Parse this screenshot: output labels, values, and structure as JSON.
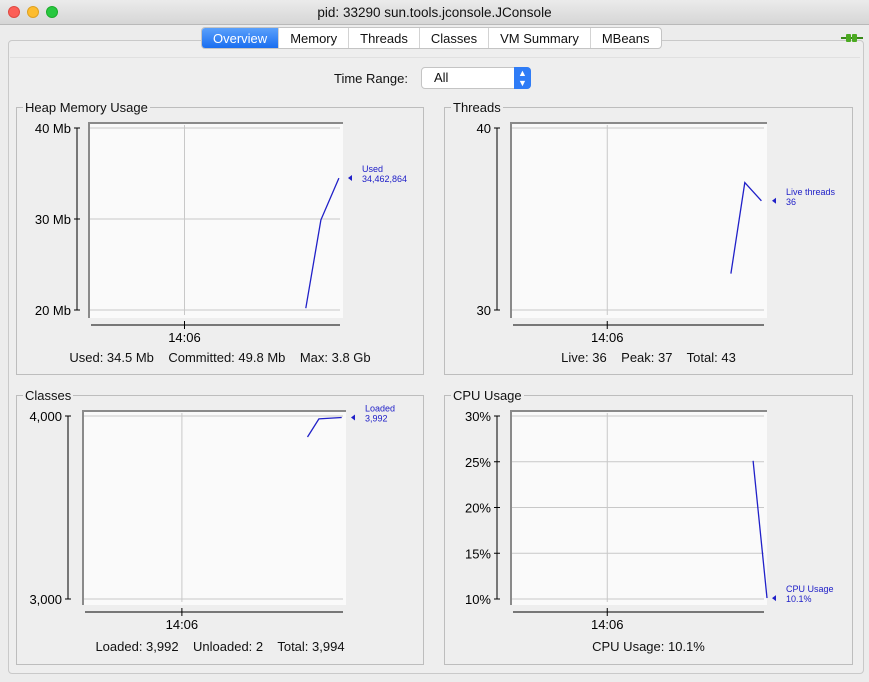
{
  "window": {
    "title": "pid: 33290 sun.tools.jconsole.JConsole"
  },
  "tabs": [
    {
      "label": "Overview",
      "active": true
    },
    {
      "label": "Memory"
    },
    {
      "label": "Threads"
    },
    {
      "label": "Classes"
    },
    {
      "label": "VM Summary"
    },
    {
      "label": "MBeans"
    }
  ],
  "connection_icon": "connected-plug-icon",
  "time_range": {
    "label": "Time Range:",
    "value": "All"
  },
  "colors": {
    "series": "#2020c8",
    "accent": "#1a6ef0"
  },
  "chart_data": [
    {
      "type": "line",
      "title": "Heap Memory Usage",
      "yticks": [
        "40 Mb",
        "30 Mb",
        "20 Mb"
      ],
      "ylim": [
        20,
        40
      ],
      "xtick": "14:06",
      "xlim": [
        "14:04:50",
        "14:07:55"
      ],
      "series": [
        {
          "name": "Used",
          "points": [
            [
              "14:07:28",
              20.2
            ],
            [
              "14:07:39",
              29.9
            ],
            [
              "14:07:52",
              34.5
            ]
          ]
        }
      ],
      "legend": {
        "name": "Used",
        "value": "34,462,864"
      },
      "summary": "Used: 34.5 Mb    Committed: 49.8 Mb    Max: 3.8 Gb"
    },
    {
      "type": "line",
      "title": "Threads",
      "yticks": [
        "40",
        "30"
      ],
      "ylim": [
        30,
        40
      ],
      "xtick": "14:06",
      "xlim": [
        "14:04:50",
        "14:07:55"
      ],
      "series": [
        {
          "name": "Live threads",
          "points": [
            [
              "14:07:29",
              32
            ],
            [
              "14:07:39",
              37
            ],
            [
              "14:07:51",
              36
            ]
          ]
        }
      ],
      "legend": {
        "name": "Live threads",
        "value": "36"
      },
      "summary": "Live: 36    Peak: 37    Total: 43"
    },
    {
      "type": "line",
      "title": "Classes",
      "yticks": [
        "4,000",
        "3,000"
      ],
      "ylim": [
        3000,
        4000
      ],
      "xtick": "14:06",
      "xlim": [
        "14:04:50",
        "14:07:55"
      ],
      "series": [
        {
          "name": "Loaded",
          "points": [
            [
              "14:07:28",
              3885
            ],
            [
              "14:07:36",
              3984
            ],
            [
              "14:07:52",
              3992
            ]
          ]
        }
      ],
      "legend": {
        "name": "Loaded",
        "value": "3,992"
      },
      "summary": "Loaded: 3,992    Unloaded: 2    Total: 3,994"
    },
    {
      "type": "line",
      "title": "CPU Usage",
      "yticks": [
        "30%",
        "25%",
        "20%",
        "15%",
        "10%"
      ],
      "ylim": [
        10,
        30
      ],
      "xtick": "14:06",
      "xlim": [
        "14:04:50",
        "14:07:55"
      ],
      "series": [
        {
          "name": "CPU Usage",
          "points": [
            [
              "14:07:45",
              25.1
            ],
            [
              "14:07:55",
              10.1
            ]
          ]
        }
      ],
      "legend": {
        "name": "CPU Usage",
        "value": "10.1%"
      },
      "summary": "CPU Usage: 10.1%"
    }
  ]
}
